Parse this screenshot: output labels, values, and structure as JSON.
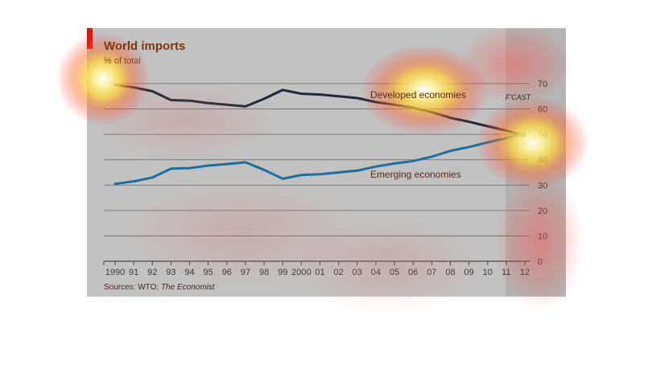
{
  "title": "World imports",
  "subtitle": "% of total",
  "forecast_label": "F'CAST",
  "source_prefix": "Sources: WTO; ",
  "source_italic": "The Economist",
  "colors": {
    "developed": "#1e2a3a",
    "emerging": "#1f6e9c",
    "gridline": "#6a6a6a",
    "brand_red": "#e3120b"
  },
  "chart_data": {
    "type": "line",
    "title": "World imports",
    "subtitle": "% of total",
    "x": [
      "1990",
      "91",
      "92",
      "93",
      "94",
      "95",
      "96",
      "97",
      "98",
      "99",
      "2000",
      "01",
      "02",
      "03",
      "04",
      "05",
      "06",
      "07",
      "08",
      "09",
      "10",
      "11",
      "12"
    ],
    "series": [
      {
        "name": "Developed economies",
        "values": [
          69.5,
          68.5,
          67,
          63.5,
          63.3,
          62.3,
          61.7,
          61,
          64,
          67.5,
          66,
          65.7,
          65,
          64.3,
          62.7,
          61.7,
          60.5,
          58.8,
          56.5,
          55,
          53.2,
          51.5,
          49.5
        ]
      },
      {
        "name": "Emerging economies",
        "values": [
          30.5,
          31.5,
          33,
          36.5,
          36.7,
          37.7,
          38.3,
          39,
          36,
          32.5,
          34,
          34.3,
          35,
          35.7,
          37.3,
          38.5,
          39.5,
          41.2,
          43.5,
          45,
          46.8,
          48.5,
          50.5
        ]
      }
    ],
    "ylim": [
      0,
      70
    ],
    "yticks": [
      0,
      10,
      20,
      30,
      40,
      50,
      60,
      70
    ],
    "forecast_from": "12",
    "grid": true,
    "source": "Sources: WTO; The Economist"
  }
}
